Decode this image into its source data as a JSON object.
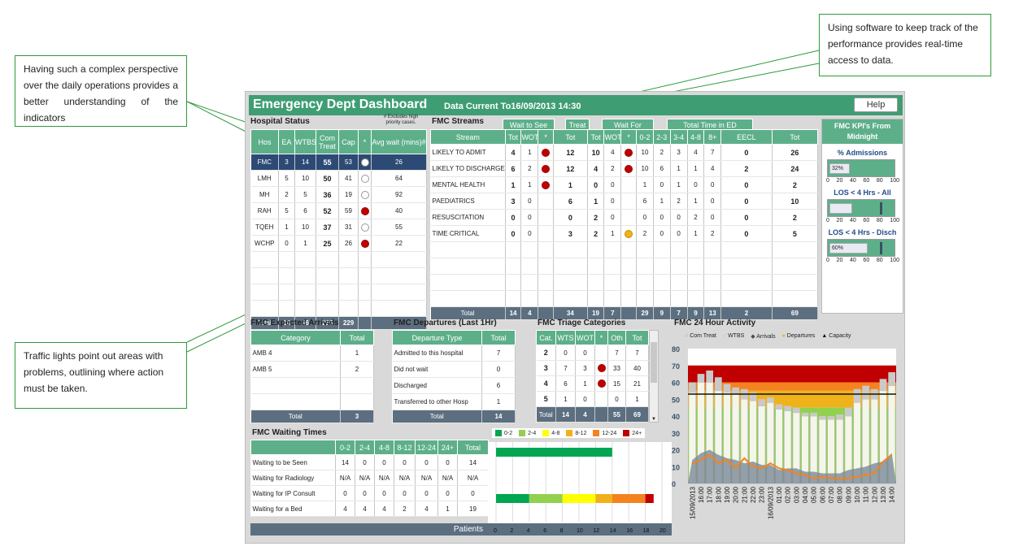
{
  "callouts": {
    "left_top": "Having such a complex perspective over the daily operations provides a better understanding of the indicators",
    "right_top": "Using software to keep track of the performance provides real-time access to data.",
    "left_bottom": "Traffic lights point out areas with problems, outlining where action must be taken."
  },
  "header": {
    "title": "Emergency Dept Dashboard",
    "data_current": "Data Current To16/09/2013 14:30",
    "help": "Help"
  },
  "hospital": {
    "title": "Hospital Status",
    "note": "# Excludes high priority cases.",
    "cols": [
      "Hos",
      "EA",
      "WTBS",
      "Com Treat",
      "Cap",
      "*",
      "Avg wait (mins)#"
    ],
    "rows": [
      [
        "FMC",
        "3",
        "14",
        "55",
        "53",
        "white",
        "26"
      ],
      [
        "LMH",
        "5",
        "10",
        "50",
        "41",
        "white",
        "64"
      ],
      [
        "MH",
        "2",
        "5",
        "36",
        "19",
        "white",
        "92"
      ],
      [
        "RAH",
        "5",
        "6",
        "52",
        "59",
        "red",
        "40"
      ],
      [
        "TQEH",
        "1",
        "10",
        "37",
        "31",
        "white",
        "55"
      ],
      [
        "WCHP",
        "0",
        "1",
        "25",
        "26",
        "red",
        "22"
      ]
    ],
    "total": [
      "Total",
      "16",
      "46",
      "255",
      "229",
      "",
      ""
    ]
  },
  "streams": {
    "title": "FMC Streams",
    "tabs": [
      "Wait to See",
      "Treat",
      "Wait For",
      "Total Time in ED"
    ],
    "cols": [
      "Stream",
      "Tot",
      "WOT",
      "*",
      "Tot",
      "Tot",
      "WOT",
      "*",
      "0-2",
      "2-3",
      "3-4",
      "4-8",
      "8+",
      "EECL",
      "Tot"
    ],
    "rows": [
      [
        "LIKELY TO ADMIT",
        "4",
        "1",
        "red",
        "12",
        "10",
        "4",
        "red",
        "10",
        "2",
        "3",
        "4",
        "7",
        "0",
        "26"
      ],
      [
        "LIKELY TO DISCHARGE",
        "6",
        "2",
        "red",
        "12",
        "4",
        "2",
        "red",
        "10",
        "6",
        "1",
        "1",
        "4",
        "2",
        "24"
      ],
      [
        "MENTAL HEALTH",
        "1",
        "1",
        "red",
        "1",
        "0",
        "0",
        "",
        "1",
        "0",
        "1",
        "0",
        "0",
        "0",
        "2"
      ],
      [
        "PAEDIATRICS",
        "3",
        "0",
        "",
        "6",
        "1",
        "0",
        "",
        "6",
        "1",
        "2",
        "1",
        "0",
        "0",
        "10"
      ],
      [
        "RESUSCITATION",
        "0",
        "0",
        "",
        "0",
        "2",
        "0",
        "",
        "0",
        "0",
        "0",
        "2",
        "0",
        "0",
        "2"
      ],
      [
        "TIME CRITICAL",
        "0",
        "0",
        "",
        "3",
        "2",
        "1",
        "amber",
        "2",
        "0",
        "0",
        "1",
        "2",
        "0",
        "5"
      ]
    ],
    "total": [
      "Total",
      "14",
      "4",
      "",
      "34",
      "19",
      "7",
      "",
      "29",
      "9",
      "7",
      "9",
      "13",
      "2",
      "69"
    ]
  },
  "kpi": {
    "title": "FMC KPI's From Midnight",
    "items": [
      {
        "label": "% Admissions",
        "value": "32%",
        "pct": 32,
        "target": null
      },
      {
        "label": "LOS < 4 Hrs - All",
        "value": "",
        "pct": 0,
        "target": 80
      },
      {
        "label": "LOS < 4 Hrs - Disch",
        "value": "60%",
        "pct": 60,
        "target": 80
      }
    ],
    "axis": [
      "0",
      "20",
      "40",
      "60",
      "80",
      "100"
    ]
  },
  "arrivals": {
    "title": "FMC Expected Arrivals",
    "cols": [
      "Category",
      "Total"
    ],
    "rows": [
      [
        "AMB 4",
        "1"
      ],
      [
        "AMB 5",
        "2"
      ],
      [
        "",
        ""
      ],
      [
        "",
        ""
      ]
    ],
    "total": [
      "Total",
      "3"
    ]
  },
  "departures": {
    "title": "FMC Departures (Last 1Hr)",
    "cols": [
      "Departure Type",
      "Total"
    ],
    "rows": [
      [
        "Admitted to this hospital",
        "7"
      ],
      [
        "Did not wait",
        "0"
      ],
      [
        "Discharged",
        "6"
      ],
      [
        "Transferred to other Hosp",
        "1"
      ]
    ],
    "total": [
      "Total",
      "14"
    ]
  },
  "triage": {
    "title": "FMC Triage Categories",
    "cols": [
      "Cat.",
      "WTS",
      "WOT",
      "*",
      "Oth",
      "Tot"
    ],
    "rows": [
      [
        "2",
        "0",
        "0",
        "",
        "7",
        "7"
      ],
      [
        "3",
        "7",
        "3",
        "red",
        "33",
        "40"
      ],
      [
        "4",
        "6",
        "1",
        "red",
        "15",
        "21"
      ],
      [
        "5",
        "1",
        "0",
        "",
        "0",
        "1"
      ]
    ],
    "total": [
      "Total",
      "14",
      "4",
      "",
      "55",
      "69"
    ]
  },
  "waiting": {
    "title": "FMC Waiting Times",
    "cols": [
      "",
      "0-2",
      "2-4",
      "4-8",
      "8-12",
      "12-24",
      "24+",
      "Total"
    ],
    "rows": [
      [
        "Waiting to be Seen",
        "14",
        "0",
        "0",
        "0",
        "0",
        "0",
        "14"
      ],
      [
        "Waiting for Radiology",
        "N/A",
        "N/A",
        "N/A",
        "N/A",
        "N/A",
        "N/A",
        "N/A"
      ],
      [
        "Waiting for IP Consult",
        "0",
        "0",
        "0",
        "0",
        "0",
        "0",
        "0"
      ],
      [
        "Waiting for a Bed",
        "4",
        "4",
        "4",
        "2",
        "4",
        "1",
        "19"
      ]
    ],
    "legend": [
      "0-2",
      "2-4",
      "4-8",
      "8-12",
      "12-24",
      "24+"
    ],
    "legend_colors": [
      "#00a651",
      "#92d050",
      "#ffff00",
      "#f0b21a",
      "#f58220",
      "#c00000"
    ],
    "xlabel": "Patients",
    "xticks": [
      "0",
      "2",
      "4",
      "6",
      "8",
      "10",
      "12",
      "14",
      "16",
      "18",
      "20"
    ]
  },
  "activity": {
    "title": "FMC 24 Hour Activity",
    "legend": [
      "Com Treat",
      "WTBS",
      "Arrivals",
      "Departures",
      "Capacity"
    ],
    "yticks": [
      "0",
      "10",
      "20",
      "30",
      "40",
      "50",
      "60",
      "70",
      "80"
    ]
  },
  "chart_data": {
    "type": "bar",
    "title": "FMC 24 Hour Activity",
    "ylim": [
      0,
      80
    ],
    "categories": [
      "15/09/2013",
      "16:00",
      "17:00",
      "18:00",
      "19:00",
      "20:00",
      "21:00",
      "22:00",
      "23:00",
      "16/09/2013",
      "01:00",
      "02:00",
      "03:00",
      "04:00",
      "05:00",
      "06:00",
      "07:00",
      "08:00",
      "09:00",
      "10:00",
      "11:00",
      "12:00",
      "13:00",
      "14:00"
    ],
    "series": [
      {
        "name": "Com Treat",
        "values": [
          54,
          60,
          60,
          55,
          54,
          53,
          50,
          49,
          46,
          48,
          44,
          43,
          42,
          40,
          40,
          38,
          38,
          38,
          40,
          48,
          50,
          50,
          55,
          58
        ]
      },
      {
        "name": "WTBS",
        "values": [
          6,
          5,
          7,
          8,
          5,
          4,
          6,
          5,
          4,
          3,
          3,
          3,
          3,
          2,
          2,
          2,
          2,
          3,
          5,
          8,
          8,
          6,
          7,
          8
        ]
      },
      {
        "name": "Arrivals",
        "values": [
          14,
          18,
          20,
          17,
          15,
          14,
          12,
          13,
          11,
          11,
          8,
          9,
          9,
          7,
          7,
          6,
          6,
          6,
          8,
          9,
          10,
          12,
          13,
          18
        ]
      },
      {
        "name": "Departures",
        "values": [
          12,
          14,
          17,
          12,
          14,
          9,
          15,
          10,
          9,
          12,
          9,
          8,
          6,
          5,
          3,
          4,
          3,
          3,
          3,
          4,
          5,
          6,
          13,
          17
        ]
      },
      {
        "name": "Capacity",
        "values": [
          53,
          53,
          53,
          53,
          53,
          53,
          53,
          53,
          53,
          53,
          53,
          53,
          53,
          53,
          53,
          53,
          53,
          53,
          53,
          53,
          53,
          53,
          53,
          53
        ]
      }
    ]
  }
}
